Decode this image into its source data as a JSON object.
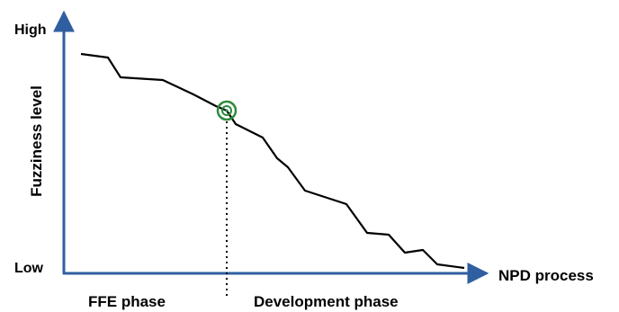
{
  "diagram": {
    "y_axis": {
      "label": "Fuzziness level",
      "high_label": "High",
      "low_label": "Low"
    },
    "x_axis": {
      "label": "NPD process"
    },
    "phases": {
      "left": "FFE phase",
      "right": "Development phase"
    },
    "colors": {
      "axis": "#2f5fa0",
      "curve": "#000000",
      "marker": "#2e8a3e",
      "divider": "#000000"
    }
  }
}
